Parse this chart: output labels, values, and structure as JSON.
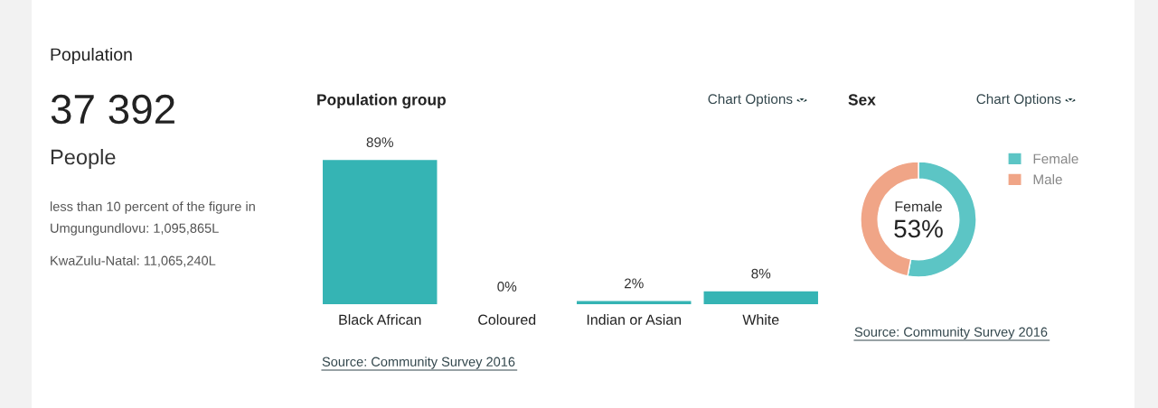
{
  "chart_data": [
    {
      "type": "other",
      "title": "Population",
      "annotations": [
        "37 392",
        "People",
        "less than 10 percent of the figure in Umgungundlovu: 1,095,865L",
        "KwaZulu-Natal: 11,065,240L"
      ]
    },
    {
      "type": "bar",
      "title": "Population group",
      "categories": [
        "Black African",
        "Coloured",
        "Indian or Asian",
        "White"
      ],
      "values": [
        89,
        0,
        2,
        8
      ],
      "value_labels": [
        "89%",
        "0%",
        "2%",
        "8%"
      ],
      "color": "#35b4b4",
      "annotations": [
        "Chart Options",
        "Source: Community Survey 2016"
      ]
    },
    {
      "type": "donut",
      "title": "Sex",
      "categories": [
        "Female",
        "Male"
      ],
      "values": [
        53,
        47
      ],
      "colors": [
        "#5cc5c5",
        "#f0a587"
      ],
      "legend": "top right",
      "annotations": [
        "Chart Options",
        "Female",
        "53%",
        "Source: Community Survey 2016"
      ]
    }
  ]
}
